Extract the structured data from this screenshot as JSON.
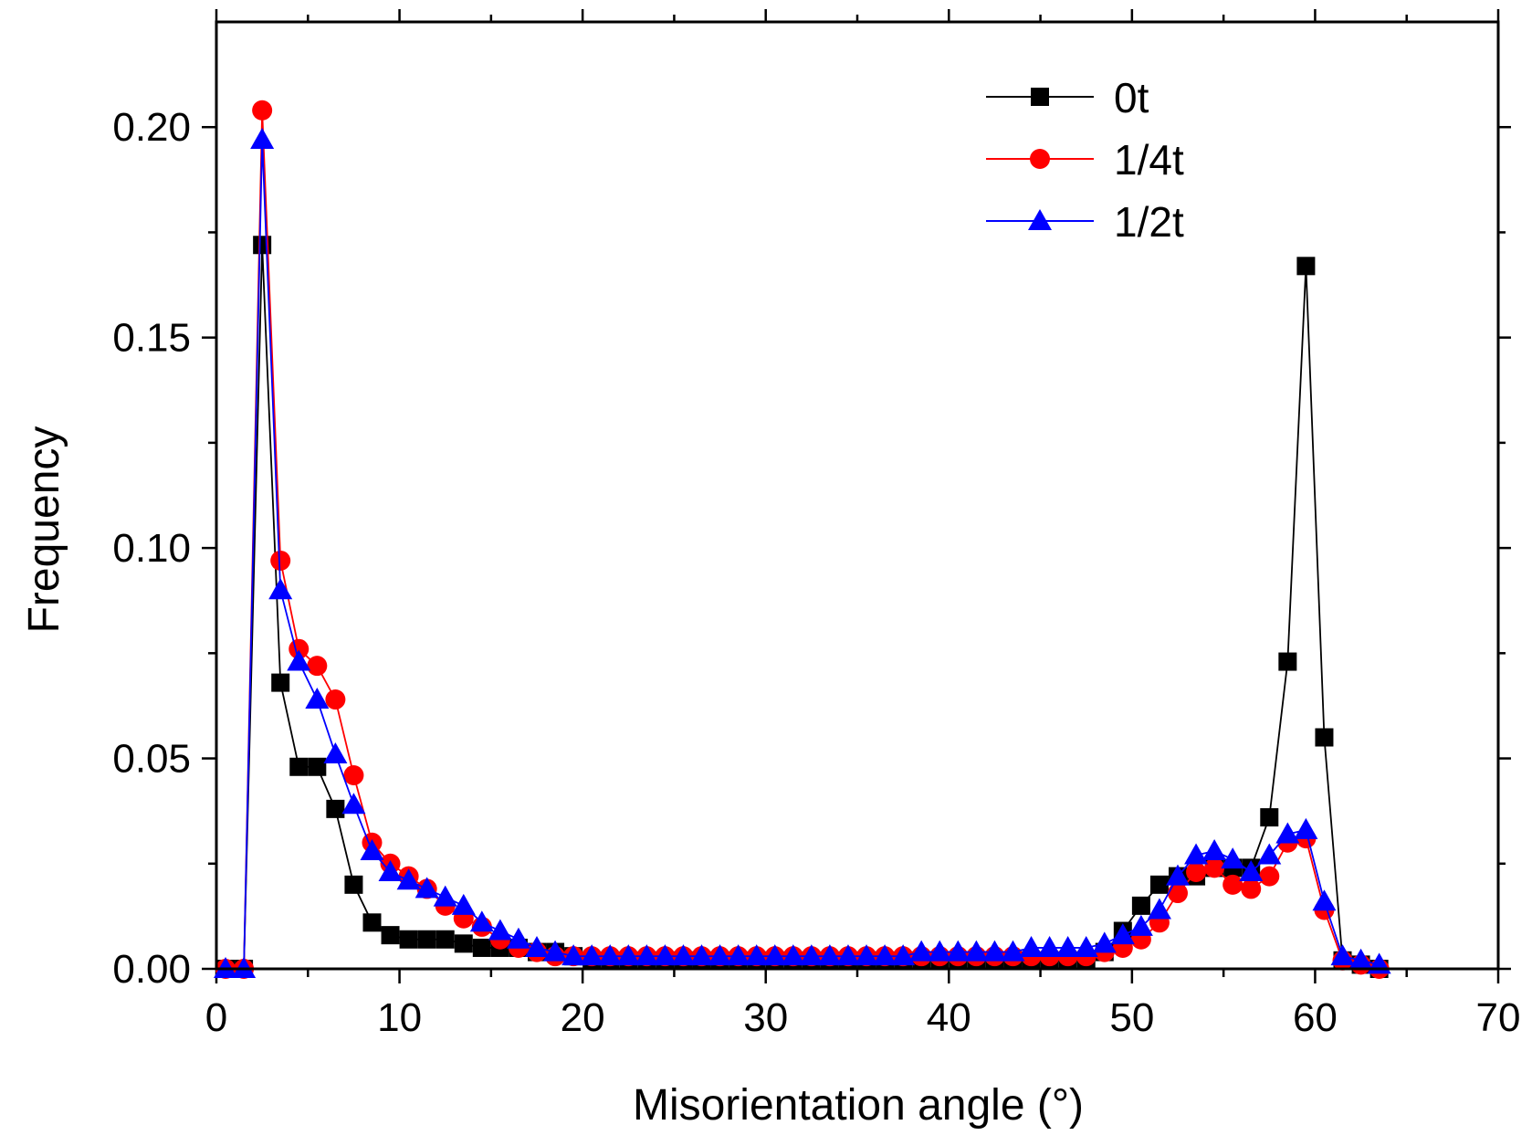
{
  "chart_data": {
    "type": "line",
    "title": "",
    "xlabel": "Misorientation angle (°)",
    "ylabel": "Frequency",
    "xlim": [
      0,
      70
    ],
    "ylim": [
      0,
      0.225
    ],
    "xticks": [
      0,
      10,
      20,
      30,
      40,
      50,
      60,
      70
    ],
    "xtick_labels": [
      "0",
      "10",
      "20",
      "30",
      "40",
      "50",
      "60",
      "70"
    ],
    "yticks": [
      0,
      0.05,
      0.1,
      0.15,
      0.2
    ],
    "ytick_labels": [
      "0.00",
      "0.05",
      "0.10",
      "0.15",
      "0.20"
    ],
    "legend_position": "top-right",
    "grid": false,
    "x": [
      0.5,
      1.5,
      2.5,
      3.5,
      4.5,
      5.5,
      6.5,
      7.5,
      8.5,
      9.5,
      10.5,
      11.5,
      12.5,
      13.5,
      14.5,
      15.5,
      16.5,
      17.5,
      18.5,
      19.5,
      20.5,
      21.5,
      22.5,
      23.5,
      24.5,
      25.5,
      26.5,
      27.5,
      28.5,
      29.5,
      30.5,
      31.5,
      32.5,
      33.5,
      34.5,
      35.5,
      36.5,
      37.5,
      38.5,
      39.5,
      40.5,
      41.5,
      42.5,
      43.5,
      44.5,
      45.5,
      46.5,
      47.5,
      48.5,
      49.5,
      50.5,
      51.5,
      52.5,
      53.5,
      54.5,
      55.5,
      56.5,
      57.5,
      58.5,
      59.5,
      60.5,
      61.5,
      62.5,
      63.5
    ],
    "series": [
      {
        "name": "0t",
        "color": "#000000",
        "marker": "square",
        "values": [
          0.0,
          0.0,
          0.172,
          0.068,
          0.048,
          0.048,
          0.038,
          0.02,
          0.011,
          0.008,
          0.007,
          0.007,
          0.007,
          0.006,
          0.005,
          0.005,
          0.005,
          0.004,
          0.004,
          0.003,
          0.002,
          0.002,
          0.002,
          0.002,
          0.002,
          0.002,
          0.002,
          0.002,
          0.002,
          0.002,
          0.002,
          0.002,
          0.002,
          0.002,
          0.002,
          0.002,
          0.002,
          0.002,
          0.002,
          0.002,
          0.002,
          0.002,
          0.002,
          0.002,
          0.002,
          0.002,
          0.002,
          0.002,
          0.004,
          0.009,
          0.015,
          0.02,
          0.022,
          0.022,
          0.024,
          0.024,
          0.024,
          0.036,
          0.073,
          0.167,
          0.055,
          0.002,
          0.001,
          0.0
        ]
      },
      {
        "name": "1/4t",
        "color": "#ff0000",
        "marker": "circle",
        "values": [
          0.0,
          0.0,
          0.204,
          0.097,
          0.076,
          0.072,
          0.064,
          0.046,
          0.03,
          0.025,
          0.022,
          0.019,
          0.015,
          0.012,
          0.01,
          0.007,
          0.005,
          0.004,
          0.003,
          0.003,
          0.003,
          0.003,
          0.003,
          0.003,
          0.003,
          0.003,
          0.003,
          0.003,
          0.003,
          0.003,
          0.003,
          0.003,
          0.003,
          0.003,
          0.003,
          0.003,
          0.003,
          0.003,
          0.003,
          0.003,
          0.003,
          0.003,
          0.003,
          0.003,
          0.003,
          0.003,
          0.003,
          0.003,
          0.004,
          0.005,
          0.007,
          0.011,
          0.018,
          0.023,
          0.024,
          0.02,
          0.019,
          0.022,
          0.03,
          0.031,
          0.014,
          0.002,
          0.001,
          0.0
        ]
      },
      {
        "name": "1/2t",
        "color": "#0000ff",
        "marker": "triangle",
        "values": [
          0.0,
          0.0,
          0.197,
          0.09,
          0.073,
          0.064,
          0.051,
          0.039,
          0.028,
          0.023,
          0.021,
          0.019,
          0.017,
          0.015,
          0.011,
          0.009,
          0.007,
          0.005,
          0.004,
          0.003,
          0.003,
          0.003,
          0.003,
          0.003,
          0.003,
          0.003,
          0.003,
          0.003,
          0.003,
          0.003,
          0.003,
          0.003,
          0.003,
          0.003,
          0.003,
          0.003,
          0.003,
          0.003,
          0.004,
          0.004,
          0.004,
          0.004,
          0.004,
          0.004,
          0.005,
          0.005,
          0.005,
          0.005,
          0.006,
          0.008,
          0.01,
          0.014,
          0.022,
          0.027,
          0.028,
          0.026,
          0.023,
          0.027,
          0.032,
          0.033,
          0.016,
          0.003,
          0.002,
          0.001
        ]
      }
    ]
  }
}
